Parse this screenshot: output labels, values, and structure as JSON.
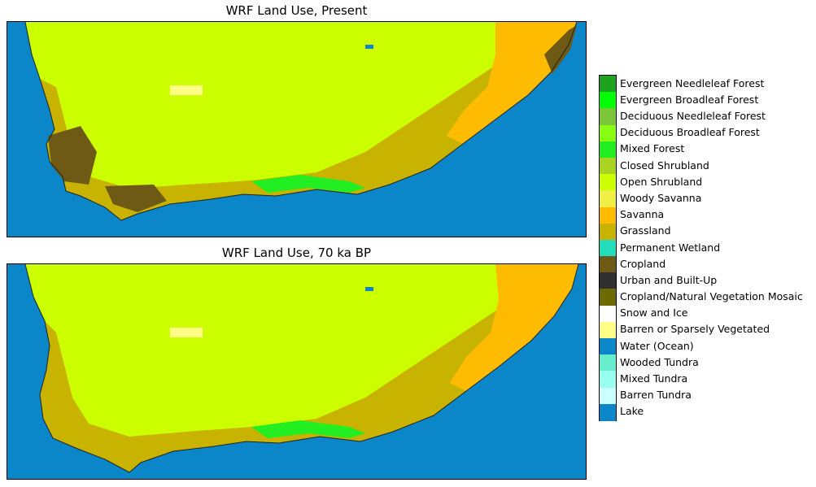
{
  "panels": [
    {
      "title": "WRF Land Use, Present"
    },
    {
      "title": "WRF Land Use, 70 ka BP"
    }
  ],
  "legend": {
    "categories": [
      {
        "label": "Evergreen Needleleaf Forest",
        "color": "#1ea31e"
      },
      {
        "label": "Evergreen Broadleaf Forest",
        "color": "#00ff00"
      },
      {
        "label": "Deciduous Needleleaf Forest",
        "color": "#7cc63a"
      },
      {
        "label": "Deciduous Broadleaf Forest",
        "color": "#88ff11"
      },
      {
        "label": "Mixed Forest",
        "color": "#22ee22"
      },
      {
        "label": "Closed Shrubland",
        "color": "#aad422"
      },
      {
        "label": "Open Shrubland",
        "color": "#ccff00"
      },
      {
        "label": "Woody Savanna",
        "color": "#eeee44"
      },
      {
        "label": "Savanna",
        "color": "#ffbb00"
      },
      {
        "label": "Grassland",
        "color": "#c8b400"
      },
      {
        "label": "Permanent Wetland",
        "color": "#22ddbb"
      },
      {
        "label": "Cropland",
        "color": "#6e5a14"
      },
      {
        "label": "Urban and Built-Up",
        "color": "#303030"
      },
      {
        "label": "Cropland/Natural Vegetation Mosaic",
        "color": "#6b6b00"
      },
      {
        "label": "Snow and Ice",
        "color": "#ffffff"
      },
      {
        "label": "Barren or Sparsely Vegetated",
        "color": "#ffff88"
      },
      {
        "label": "Water (Ocean)",
        "color": "#0a86c9"
      },
      {
        "label": "Wooded Tundra",
        "color": "#66eecc"
      },
      {
        "label": "Mixed Tundra",
        "color": "#99ffee"
      },
      {
        "label": "Barren Tundra",
        "color": "#ccffff"
      },
      {
        "label": "Lake",
        "color": "#0a86c9"
      }
    ]
  }
}
